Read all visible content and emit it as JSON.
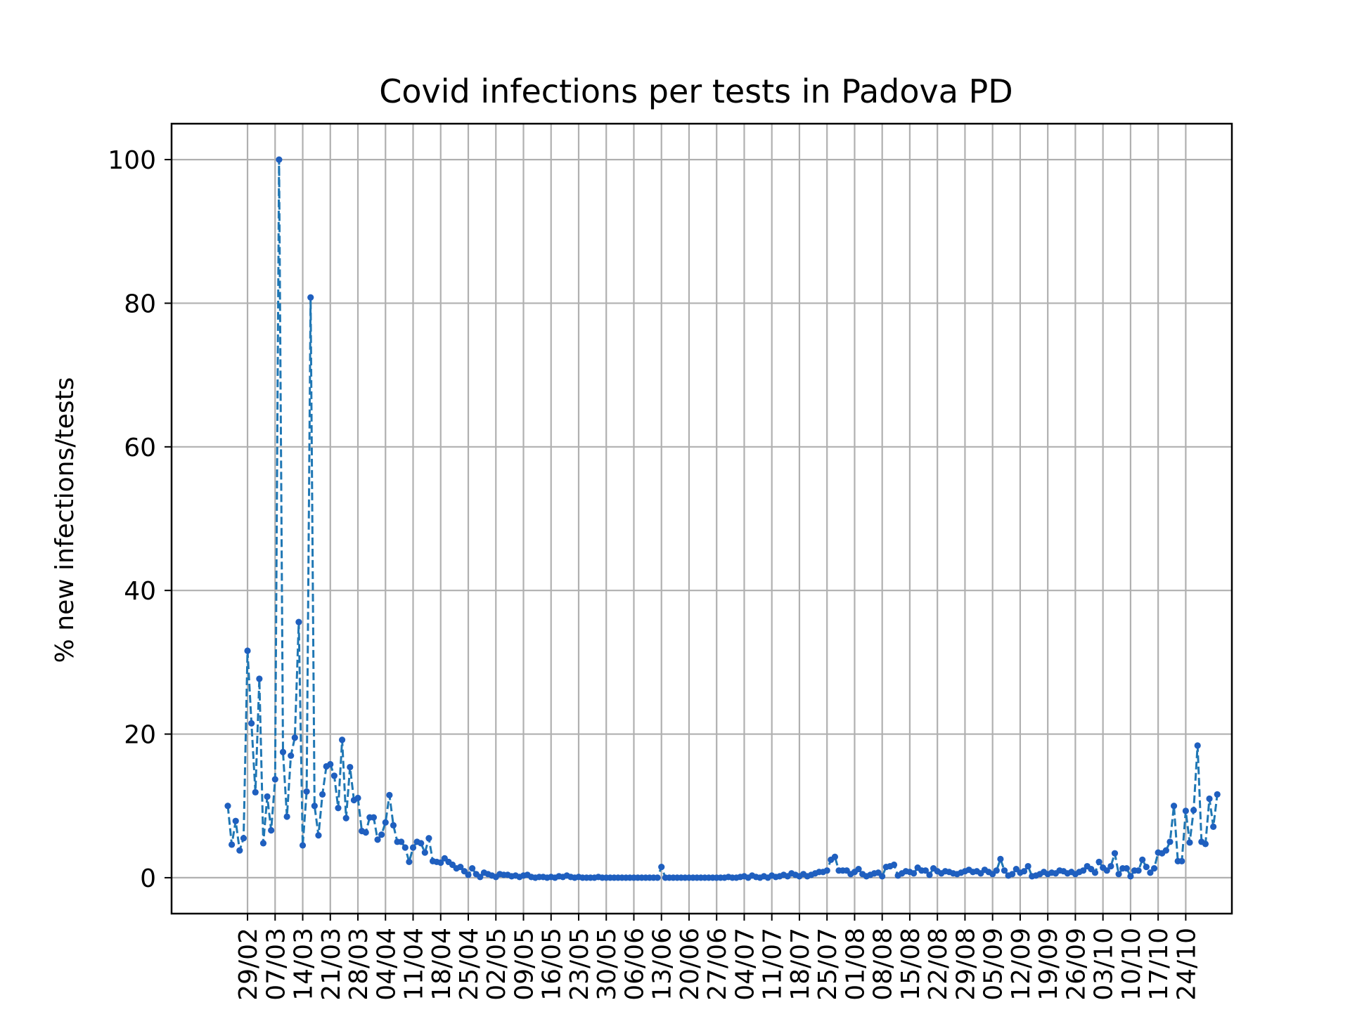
{
  "chart_data": {
    "type": "line",
    "title": "Covid infections per tests in Padova PD",
    "xlabel": "",
    "ylabel": "% new infections/tests",
    "ylim": [
      -5,
      105
    ],
    "y_ticks": [
      0,
      20,
      40,
      60,
      80,
      100
    ],
    "grid": true,
    "line_style": "dashed",
    "marker": "dot",
    "colors": {
      "line": "#1f77b4",
      "marker": "#1f5fbf",
      "grid": "#b0b0b0"
    },
    "x_start": "2020-02-24",
    "x_end": "2020-10-25",
    "x_tick_dates": [
      "2020-02-29",
      "2020-03-07",
      "2020-03-14",
      "2020-03-21",
      "2020-03-28",
      "2020-04-04",
      "2020-04-11",
      "2020-04-18",
      "2020-04-25",
      "2020-05-02",
      "2020-05-09",
      "2020-05-16",
      "2020-05-23",
      "2020-05-30",
      "2020-06-06",
      "2020-06-13",
      "2020-06-20",
      "2020-06-27",
      "2020-07-04",
      "2020-07-11",
      "2020-07-18",
      "2020-07-25",
      "2020-08-01",
      "2020-08-08",
      "2020-08-15",
      "2020-08-22",
      "2020-08-29",
      "2020-09-05",
      "2020-09-12",
      "2020-09-19",
      "2020-09-26",
      "2020-10-03",
      "2020-10-10",
      "2020-10-17",
      "2020-10-24"
    ],
    "x_tick_labels": [
      "29/02",
      "07/03",
      "14/03",
      "21/03",
      "28/03",
      "04/04",
      "11/04",
      "18/04",
      "25/04",
      "02/05",
      "09/05",
      "16/05",
      "23/05",
      "30/05",
      "06/06",
      "13/06",
      "20/06",
      "27/06",
      "04/07",
      "11/07",
      "18/07",
      "25/07",
      "01/08",
      "08/08",
      "15/08",
      "22/08",
      "29/08",
      "05/09",
      "12/09",
      "19/09",
      "26/09",
      "03/10",
      "10/10",
      "17/10",
      "24/10"
    ],
    "series": [
      {
        "name": "",
        "values": [
          10,
          4.6,
          7.9,
          3.8,
          5.5,
          31.6,
          21.5,
          11.9,
          27.7,
          4.8,
          11.3,
          6.6,
          13.7,
          100,
          17.5,
          8.5,
          17,
          19.5,
          35.6,
          4.5,
          12,
          80.8,
          10,
          5.9,
          11.6,
          15.5,
          15.8,
          14.2,
          9.7,
          19.2,
          8.3,
          15.4,
          10.8,
          11.1,
          6.5,
          6.3,
          8.4,
          8.4,
          5.3,
          6,
          7.7,
          11.5,
          7.3,
          5,
          5,
          4.2,
          2.2,
          4.2,
          5,
          4.8,
          3.5,
          5.5,
          2.3,
          2.2,
          2.1,
          2.7,
          2.2,
          1.8,
          1.3,
          1.5,
          0.9,
          0.4,
          1.3,
          0.5,
          0.1,
          0.7,
          0.5,
          0.3,
          0.1,
          0.5,
          0.4,
          0.4,
          0.2,
          0.3,
          0.1,
          0.3,
          0.4,
          0.1,
          0,
          0.1,
          0.1,
          0,
          0.1,
          0,
          0.2,
          0.1,
          0.3,
          0.1,
          0,
          0.1,
          0,
          0,
          0,
          0,
          0.1,
          0,
          0,
          0,
          0,
          0,
          0,
          0,
          0,
          0,
          0,
          0,
          0,
          0,
          0,
          0,
          1.5,
          0,
          0,
          0,
          0,
          0,
          0,
          0,
          0,
          0,
          0,
          0,
          0,
          0,
          0,
          0,
          0,
          0.1,
          0,
          0,
          0.1,
          0.2,
          0,
          0.3,
          0.1,
          0,
          0.2,
          0,
          0.3,
          0.1,
          0.2,
          0.4,
          0.2,
          0.6,
          0.4,
          0.2,
          0.5,
          0.2,
          0.4,
          0.6,
          0.8,
          0.8,
          1,
          2.5,
          2.9,
          1,
          1,
          1,
          0.5,
          0.8,
          1.2,
          0.5,
          0.2,
          0.4,
          0.6,
          0.7,
          0.2,
          1.5,
          1.6,
          1.8,
          0.3,
          0.6,
          0.9,
          0.8,
          0.6,
          1.4,
          1,
          1,
          0.4,
          1.3,
          0.9,
          0.6,
          0.9,
          0.8,
          0.6,
          0.5,
          0.7,
          0.9,
          1.1,
          0.8,
          0.9,
          0.6,
          1.1,
          0.8,
          0.5,
          1,
          2.6,
          1,
          0.3,
          0.5,
          1.2,
          0.7,
          0.9,
          1.6,
          0.2,
          0.3,
          0.5,
          0.8,
          0.5,
          0.7,
          0.6,
          1,
          0.9,
          0.6,
          0.8,
          0.5,
          0.8,
          1,
          1.6,
          1.2,
          0.7,
          2.2,
          1.4,
          1,
          1.6,
          3.4,
          0.5,
          1.3,
          1.3,
          0.2,
          1,
          1,
          2.5,
          1.5,
          0.7,
          1.3,
          3.5,
          3.4,
          3.8,
          5,
          10,
          2.3,
          2.3,
          9.3,
          4.9,
          9.4,
          18.4,
          5,
          4.7,
          11,
          7.1,
          11.6
        ]
      }
    ]
  }
}
